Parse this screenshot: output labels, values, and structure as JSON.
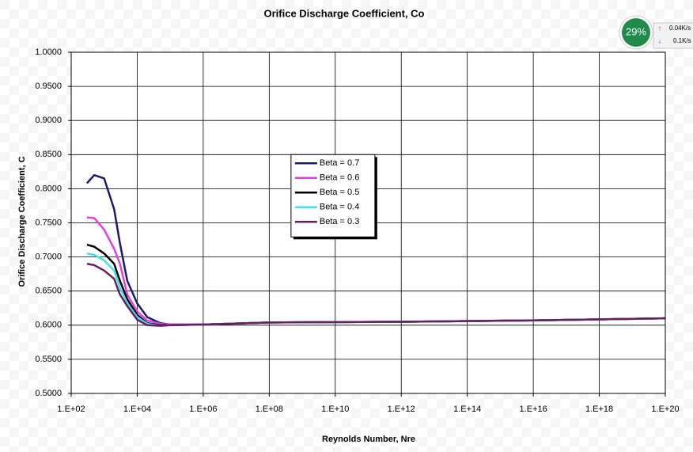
{
  "chart_data": {
    "type": "line",
    "title": "Orifice Discharge Coefficient, Co",
    "x_label": "Reynolds Number, Nre",
    "y_label": "Orifice Discharge Coefficient, C",
    "x_scale": "log",
    "grid": true,
    "legend": "center",
    "x": [
      300,
      500,
      1000,
      2000,
      3000,
      5000,
      10000,
      20000,
      50000,
      100000,
      1000000,
      100000000,
      1000000000000,
      10000000000000000,
      100000000000000000000
    ],
    "series": [
      {
        "name": "Beta = 0.7",
        "color": "#1b1b70",
        "values": [
          0.808,
          0.82,
          0.815,
          0.77,
          0.72,
          0.665,
          0.632,
          0.612,
          0.603,
          0.601,
          0.601,
          0.604,
          0.605,
          0.607,
          0.61
        ]
      },
      {
        "name": "Beta = 0.6",
        "color": "#e23ee2",
        "values": [
          0.758,
          0.757,
          0.74,
          0.712,
          0.69,
          0.645,
          0.62,
          0.607,
          0.602,
          0.601,
          0.601,
          0.604,
          0.605,
          0.607,
          0.61
        ]
      },
      {
        "name": "Beta = 0.5",
        "color": "#000000",
        "values": [
          0.718,
          0.715,
          0.705,
          0.69,
          0.665,
          0.638,
          0.615,
          0.603,
          0.6,
          0.6,
          0.601,
          0.604,
          0.605,
          0.607,
          0.61
        ]
      },
      {
        "name": "Beta = 0.4",
        "color": "#3fe3ea",
        "values": [
          0.705,
          0.703,
          0.695,
          0.68,
          0.655,
          0.632,
          0.612,
          0.602,
          0.599,
          0.6,
          0.601,
          0.604,
          0.605,
          0.607,
          0.61
        ]
      },
      {
        "name": "Beta = 0.3",
        "color": "#6a1e60",
        "values": [
          0.69,
          0.688,
          0.68,
          0.668,
          0.645,
          0.628,
          0.608,
          0.6,
          0.599,
          0.6,
          0.601,
          0.604,
          0.605,
          0.607,
          0.61
        ]
      }
    ],
    "xlim": [
      100,
      100000000000000000000
    ],
    "xticks": [
      {
        "value": 100,
        "label": "1.E+02"
      },
      {
        "value": 10000,
        "label": "1.E+04"
      },
      {
        "value": 1000000,
        "label": "1.E+06"
      },
      {
        "value": 100000000,
        "label": "1.E+08"
      },
      {
        "value": 10000000000,
        "label": "1.E+10"
      },
      {
        "value": 1000000000000,
        "label": "1.E+12"
      },
      {
        "value": 100000000000000,
        "label": "1.E+14"
      },
      {
        "value": 10000000000000000,
        "label": "1.E+16"
      },
      {
        "value": 1000000000000000000,
        "label": "1.E+18"
      },
      {
        "value": 100000000000000000000,
        "label": "1.E+20"
      }
    ],
    "ylim": [
      0.5,
      1.0
    ],
    "yticks": [
      {
        "value": 0.5,
        "label": "0.5000"
      },
      {
        "value": 0.55,
        "label": "0.5500"
      },
      {
        "value": 0.6,
        "label": "0.6000"
      },
      {
        "value": 0.65,
        "label": "0.6500"
      },
      {
        "value": 0.7,
        "label": "0.7000"
      },
      {
        "value": 0.75,
        "label": "0.7500"
      },
      {
        "value": 0.8,
        "label": "0.8000"
      },
      {
        "value": 0.85,
        "label": "0.8500"
      },
      {
        "value": 0.9,
        "label": "0.9000"
      },
      {
        "value": 0.95,
        "label": "0.9500"
      },
      {
        "value": 1.0,
        "label": "1.0000"
      }
    ]
  },
  "overlay": {
    "percent": "29%",
    "up": "0.04K/s",
    "down": "0.1K/s"
  }
}
